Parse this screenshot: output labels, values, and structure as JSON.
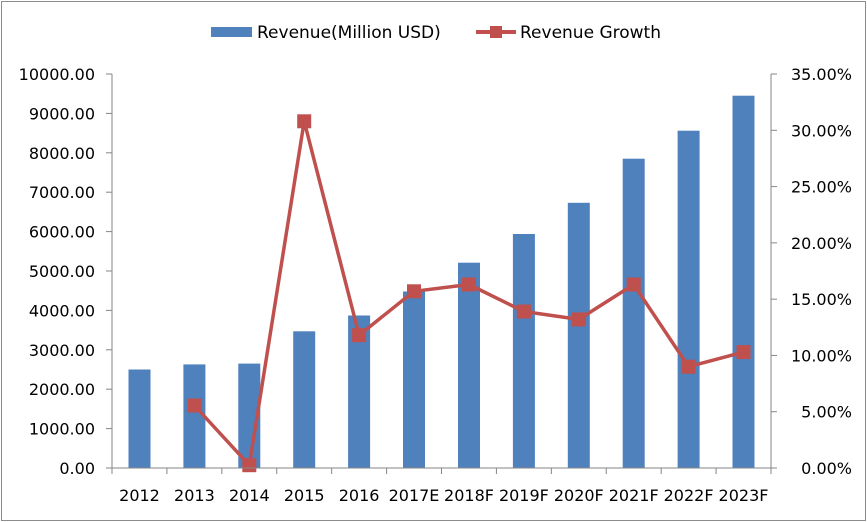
{
  "chart_data": {
    "type": "bar",
    "categories": [
      "2012",
      "2013",
      "2014",
      "2015",
      "2016",
      "2017E",
      "2018F",
      "2019F",
      "2020F",
      "2021F",
      "2022F",
      "2023F"
    ],
    "series": [
      {
        "name": "Revenue(Million USD)",
        "type": "bar",
        "axis": "left",
        "color": "#4f81bd",
        "values": [
          2500,
          2630,
          2650,
          3470,
          3870,
          4480,
          5210,
          5940,
          6730,
          7850,
          8560,
          9450
        ]
      },
      {
        "name": "Revenue Growth",
        "type": "line",
        "axis": "right",
        "color": "#c0504d",
        "marker": "square",
        "values": [
          null,
          0.0555,
          0.0025,
          0.308,
          0.118,
          0.157,
          0.163,
          0.139,
          0.132,
          0.163,
          0.09,
          0.103
        ]
      }
    ],
    "left_axis": {
      "min": 0,
      "max": 10000,
      "step": 1000,
      "tick_labels": [
        "0.00",
        "1000.00",
        "2000.00",
        "3000.00",
        "4000.00",
        "5000.00",
        "6000.00",
        "7000.00",
        "8000.00",
        "9000.00",
        "10000.00"
      ]
    },
    "right_axis": {
      "min": 0,
      "max": 0.35,
      "step": 0.05,
      "tick_labels": [
        "0.00%",
        "5.00%",
        "10.00%",
        "15.00%",
        "20.00%",
        "25.00%",
        "30.00%",
        "35.00%"
      ]
    },
    "grid": false,
    "legend": "top-center",
    "title": "",
    "xlabel": "",
    "ylabel": ""
  }
}
